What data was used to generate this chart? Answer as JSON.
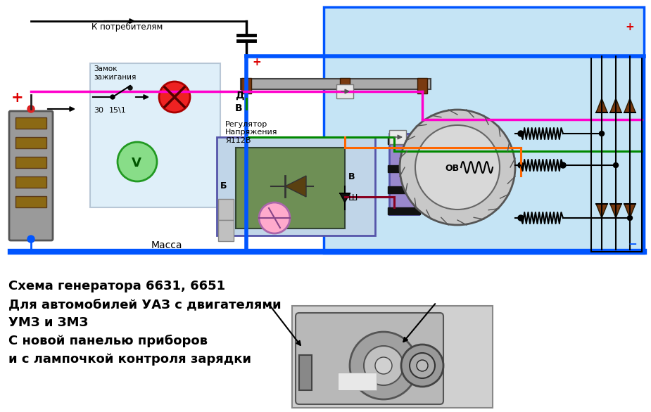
{
  "bg_color": "#ffffff",
  "diagram_bg": "#c5e4f5",
  "left_panel_bg": "#d0e8f8",
  "blue_wire": "#0055ff",
  "green_wire": "#008800",
  "magenta_wire": "#ff00cc",
  "orange_wire": "#ff6600",
  "black_wire": "#000000",
  "red_wire": "#cc0000",
  "darkred_wire": "#880020",
  "gray_wire": "#888888",
  "diode_color": "#7a3a10",
  "title_text": "Схема генератора 6631, 6651",
  "subtitle1": "Для автомобилей УАЗ с двигателями",
  "subtitle2": "УМЗ и ЗМЗ",
  "subtitle3": "С новой панелью приборов",
  "subtitle4": "и с лампочкой контроля зарядки",
  "k_potr": "К потребителям",
  "zamok": "Замок\nзажигания",
  "massa": "Масса",
  "reg_label": "Регулятор\nНапряжения\nЯ112В",
  "lD": "Д",
  "lB": "В",
  "lSh": "Ш",
  "lBz": "Б",
  "lV": "В",
  "l30": "30",
  "l151": "15\\1",
  "lOV": "ОВ"
}
